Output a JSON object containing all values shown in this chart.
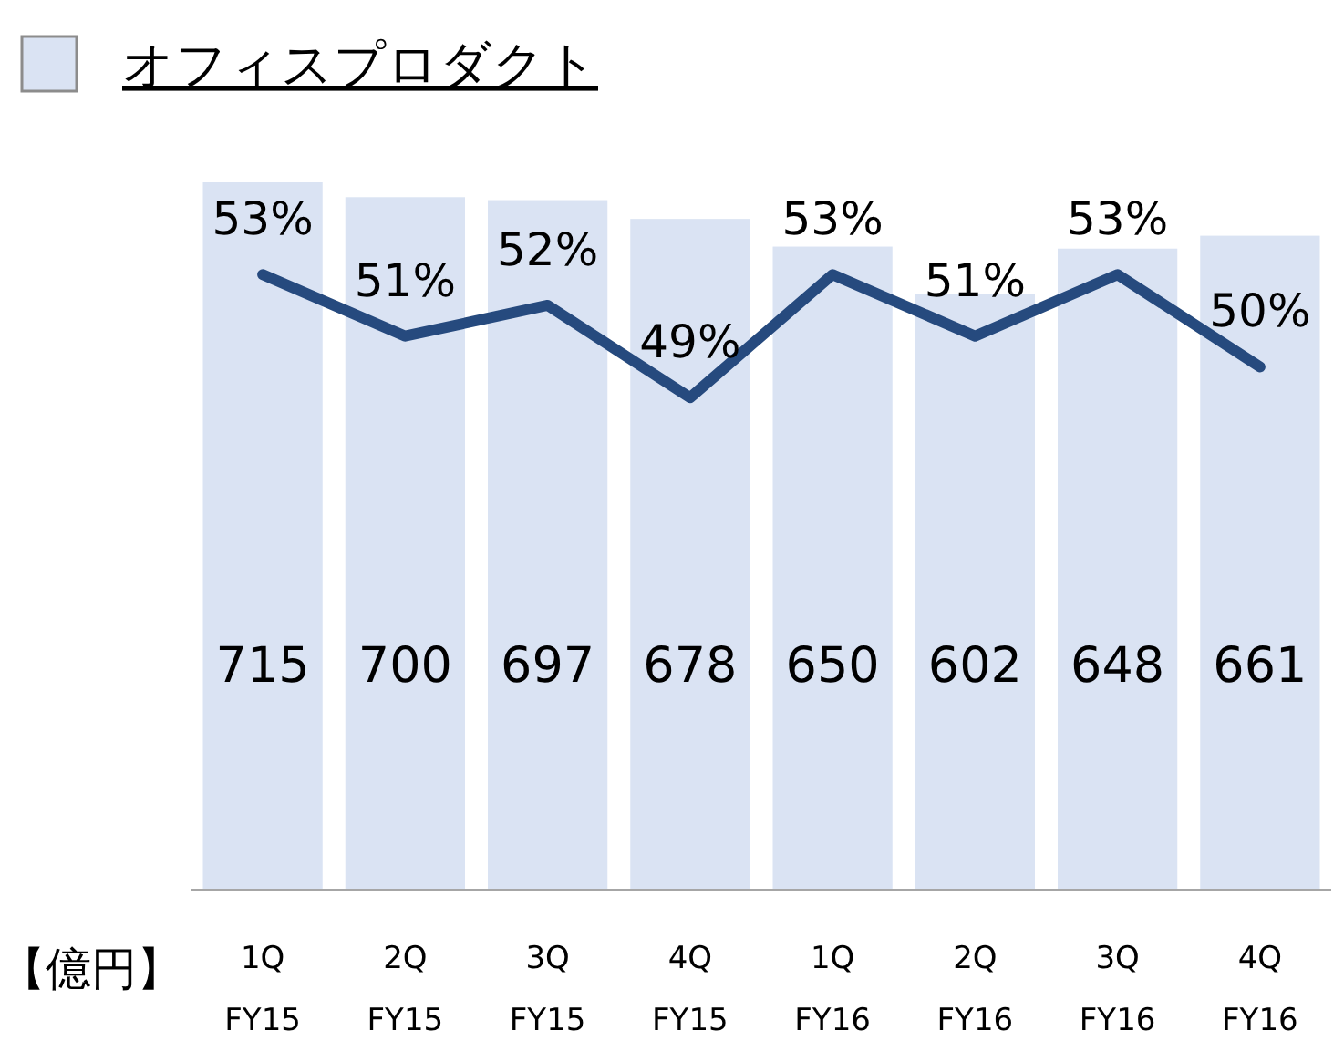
{
  "chart_data": {
    "type": "bar",
    "categories": [
      "1Q FY15",
      "2Q FY15",
      "3Q FY15",
      "4Q FY15",
      "1Q FY16",
      "2Q FY16",
      "3Q FY16",
      "4Q FY16"
    ],
    "ylabel": "【億円】",
    "ylim": [
      0,
      715
    ],
    "data_labels": true,
    "legend": "top left",
    "series": [
      {
        "type": "bar",
        "name": "オフィスプロダクト",
        "color": "#dae3f3",
        "values": [
          715,
          700,
          697,
          678,
          650,
          602,
          648,
          661
        ]
      },
      {
        "type": "line",
        "axis": "y2",
        "color": "#264a7e",
        "values": [
          53,
          51,
          52,
          49,
          53,
          51,
          53,
          50
        ],
        "value_labels": [
          "53%",
          "51%",
          "52%",
          "49%",
          "53%",
          "51%",
          "53%",
          "50%"
        ]
      }
    ]
  }
}
